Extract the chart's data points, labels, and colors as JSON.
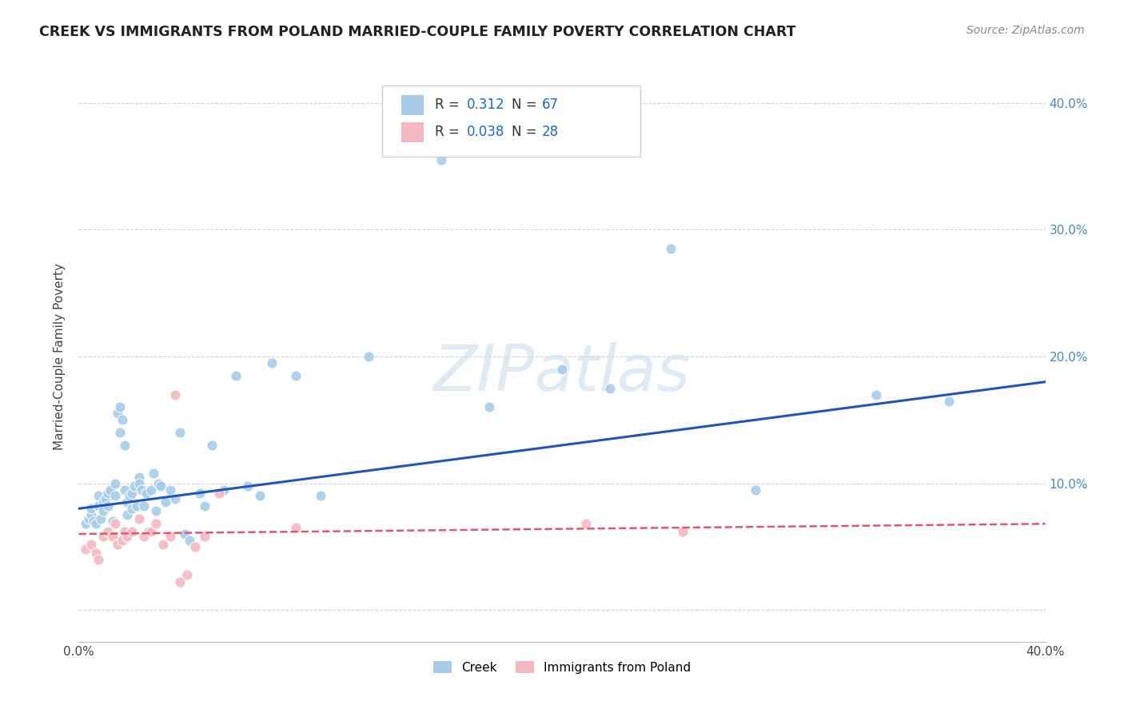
{
  "title": "CREEK VS IMMIGRANTS FROM POLAND MARRIED-COUPLE FAMILY POVERTY CORRELATION CHART",
  "source": "Source: ZipAtlas.com",
  "ylabel": "Married-Couple Family Poverty",
  "xlim": [
    0.0,
    0.4
  ],
  "ylim": [
    -0.025,
    0.425
  ],
  "creek_color": "#a8cce8",
  "poland_color": "#f4b8c0",
  "creek_line_color": "#2255bb",
  "poland_line_color": "#e05870",
  "creek_R": 0.312,
  "creek_N": 67,
  "poland_R": 0.038,
  "poland_N": 28,
  "watermark": "ZIPatlas",
  "creek_scatter_x": [
    0.003,
    0.004,
    0.005,
    0.005,
    0.006,
    0.007,
    0.008,
    0.008,
    0.009,
    0.01,
    0.01,
    0.011,
    0.012,
    0.012,
    0.013,
    0.014,
    0.015,
    0.015,
    0.016,
    0.017,
    0.017,
    0.018,
    0.019,
    0.019,
    0.02,
    0.02,
    0.021,
    0.022,
    0.022,
    0.023,
    0.024,
    0.025,
    0.025,
    0.026,
    0.027,
    0.028,
    0.029,
    0.03,
    0.031,
    0.032,
    0.033,
    0.034,
    0.036,
    0.038,
    0.04,
    0.042,
    0.044,
    0.046,
    0.05,
    0.052,
    0.055,
    0.06,
    0.065,
    0.07,
    0.075,
    0.08,
    0.09,
    0.1,
    0.12,
    0.15,
    0.17,
    0.2,
    0.22,
    0.245,
    0.28,
    0.33,
    0.36
  ],
  "creek_scatter_y": [
    0.068,
    0.072,
    0.075,
    0.08,
    0.07,
    0.068,
    0.082,
    0.09,
    0.072,
    0.085,
    0.078,
    0.088,
    0.092,
    0.082,
    0.095,
    0.07,
    0.1,
    0.09,
    0.155,
    0.16,
    0.14,
    0.15,
    0.13,
    0.095,
    0.085,
    0.075,
    0.09,
    0.08,
    0.092,
    0.098,
    0.082,
    0.105,
    0.1,
    0.095,
    0.082,
    0.092,
    0.062,
    0.095,
    0.108,
    0.078,
    0.1,
    0.098,
    0.085,
    0.095,
    0.088,
    0.14,
    0.06,
    0.055,
    0.092,
    0.082,
    0.13,
    0.095,
    0.185,
    0.098,
    0.09,
    0.195,
    0.185,
    0.09,
    0.2,
    0.355,
    0.16,
    0.19,
    0.175,
    0.285,
    0.095,
    0.17,
    0.165
  ],
  "poland_scatter_x": [
    0.003,
    0.005,
    0.007,
    0.008,
    0.01,
    0.012,
    0.014,
    0.015,
    0.016,
    0.018,
    0.019,
    0.02,
    0.022,
    0.025,
    0.027,
    0.03,
    0.032,
    0.035,
    0.038,
    0.04,
    0.042,
    0.045,
    0.048,
    0.052,
    0.058,
    0.09,
    0.21,
    0.25
  ],
  "poland_scatter_y": [
    0.048,
    0.052,
    0.045,
    0.04,
    0.058,
    0.062,
    0.058,
    0.068,
    0.052,
    0.055,
    0.062,
    0.058,
    0.062,
    0.072,
    0.058,
    0.062,
    0.068,
    0.052,
    0.058,
    0.17,
    0.022,
    0.028,
    0.05,
    0.058,
    0.092,
    0.065,
    0.068,
    0.062
  ]
}
